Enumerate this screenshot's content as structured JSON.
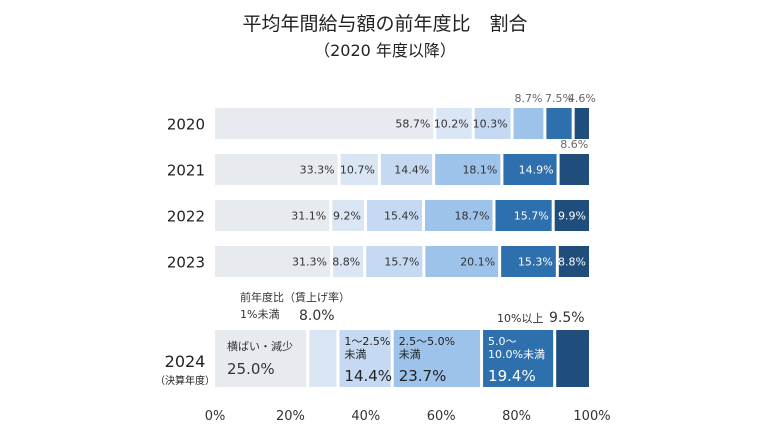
{
  "chart_data": {
    "type": "bar",
    "orientation": "horizontal",
    "stacked": true,
    "title": "平均年間給与額の前年度比　割合",
    "subtitle": "（2020 年度以降）",
    "xlim": [
      0,
      100
    ],
    "x_ticks": [
      "0%",
      "20%",
      "40%",
      "60%",
      "80%",
      "100%"
    ],
    "grid": false,
    "colors": [
      "#e7ebef",
      "#dbe6f4",
      "#c5daf2",
      "#9ec3ea",
      "#2e6fad",
      "#1f4e7d"
    ],
    "rows": [
      {
        "label": "2020",
        "values": [
          58.7,
          10.2,
          10.3,
          8.7,
          7.5,
          4.6
        ],
        "labels": [
          "58.7%",
          "10.2%",
          "10.3%",
          "8.7%",
          "7.5%",
          "4.6%"
        ]
      },
      {
        "label": "2021",
        "values": [
          33.3,
          10.7,
          14.4,
          18.1,
          14.9,
          8.6
        ],
        "labels": [
          "33.3%",
          "10.7%",
          "14.4%",
          "18.1%",
          "14.9%",
          "8.6%"
        ]
      },
      {
        "label": "2022",
        "values": [
          31.1,
          9.2,
          15.4,
          18.7,
          15.7,
          9.9
        ],
        "labels": [
          "31.1%",
          "9.2%",
          "15.4%",
          "18.7%",
          "15.7%",
          "9.9%"
        ]
      },
      {
        "label": "2023",
        "values": [
          31.3,
          8.8,
          15.7,
          20.1,
          15.3,
          8.8
        ],
        "labels": [
          "31.3%",
          "8.8%",
          "15.7%",
          "20.1%",
          "15.3%",
          "8.8%"
        ]
      }
    ],
    "row_2024": {
      "label": "2024",
      "sublabel": "（決算年度）",
      "values": [
        25.0,
        8.0,
        14.4,
        23.7,
        19.4,
        9.5
      ],
      "value_labels": [
        "25.0%",
        "8.0%",
        "14.4%",
        "23.7%",
        "19.4%",
        "9.5%"
      ],
      "category_labels": [
        "横ばい・減少",
        "1%未満",
        "1～2.5%\n未満",
        "2.5～5.0%\n未満",
        "5.0～\n10.0%未満",
        "10%以上"
      ]
    },
    "annotation": "前年度比（賃上げ率）"
  }
}
